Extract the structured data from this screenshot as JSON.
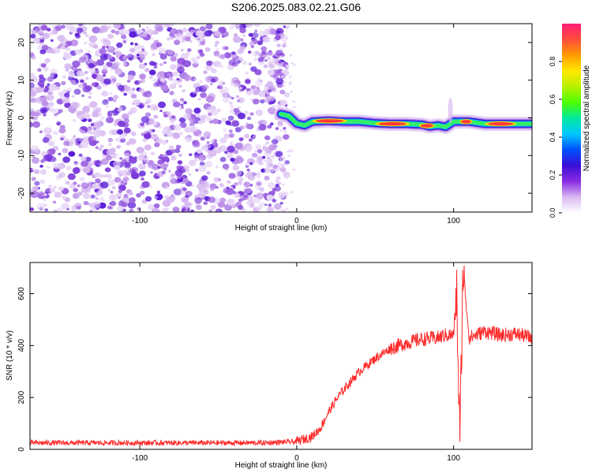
{
  "title": "S206.2025.083.02.21.G06",
  "chart_data": [
    {
      "type": "heatmap",
      "xlabel": "Height of straight line (km)",
      "ylabel": "Frequency (Hz)",
      "xlim": [
        -170,
        150
      ],
      "ylim": [
        -25,
        25
      ],
      "xticks": [
        -100,
        0,
        100
      ],
      "yticks": [
        -20,
        -10,
        0,
        10,
        20
      ],
      "colorbar": {
        "label": "Normalized spectral amplitude",
        "range": [
          0,
          1
        ],
        "ticks": [
          "0.0",
          "0.2",
          "0.4",
          "0.6",
          "0.8"
        ],
        "colors": [
          "#ffffff",
          "#d9b8f2",
          "#8a2be2",
          "#3a0fd6",
          "#0050ff",
          "#00c8ff",
          "#00e8a0",
          "#4cff00",
          "#b8f000",
          "#ffe800",
          "#ff9a00",
          "#ff4d3a",
          "#ff1e78"
        ]
      },
      "noise_region_x": [
        -170,
        -10
      ],
      "signal_track": {
        "x": [
          -10,
          -5,
          0,
          5,
          10,
          20,
          30,
          40,
          50,
          60,
          70,
          80,
          85,
          90,
          95,
          100,
          105,
          110,
          120,
          130,
          140,
          150
        ],
        "y": [
          1,
          0.5,
          -1.5,
          -2,
          -1,
          -0.8,
          -1,
          -1,
          -1.4,
          -1.6,
          -1.6,
          -1.8,
          -2.3,
          -2,
          -2.4,
          -1,
          -1,
          -1,
          -1.6,
          -1.6,
          -1.6,
          -1.6
        ]
      }
    },
    {
      "type": "line",
      "xlabel": "Height of straight line (km)",
      "ylabel": "SNR (10 * v/v)",
      "xlim": [
        -170,
        150
      ],
      "ylim": [
        0,
        720
      ],
      "xticks": [
        -100,
        0,
        100
      ],
      "yticks": [
        0,
        200,
        400,
        600
      ],
      "color": "#ff2020",
      "series": [
        {
          "x": [
            -170,
            -150,
            -100,
            -50,
            -20,
            0,
            10,
            15,
            20,
            25,
            30,
            40,
            50,
            60,
            70,
            80,
            90,
            95,
            100,
            102,
            104,
            106,
            110,
            120,
            130,
            140,
            150
          ],
          "values": [
            25,
            25,
            25,
            25,
            25,
            30,
            50,
            80,
            140,
            190,
            230,
            300,
            350,
            390,
            410,
            425,
            430,
            440,
            440,
            600,
            20,
            700,
            430,
            455,
            440,
            445,
            430
          ]
        }
      ]
    }
  ]
}
